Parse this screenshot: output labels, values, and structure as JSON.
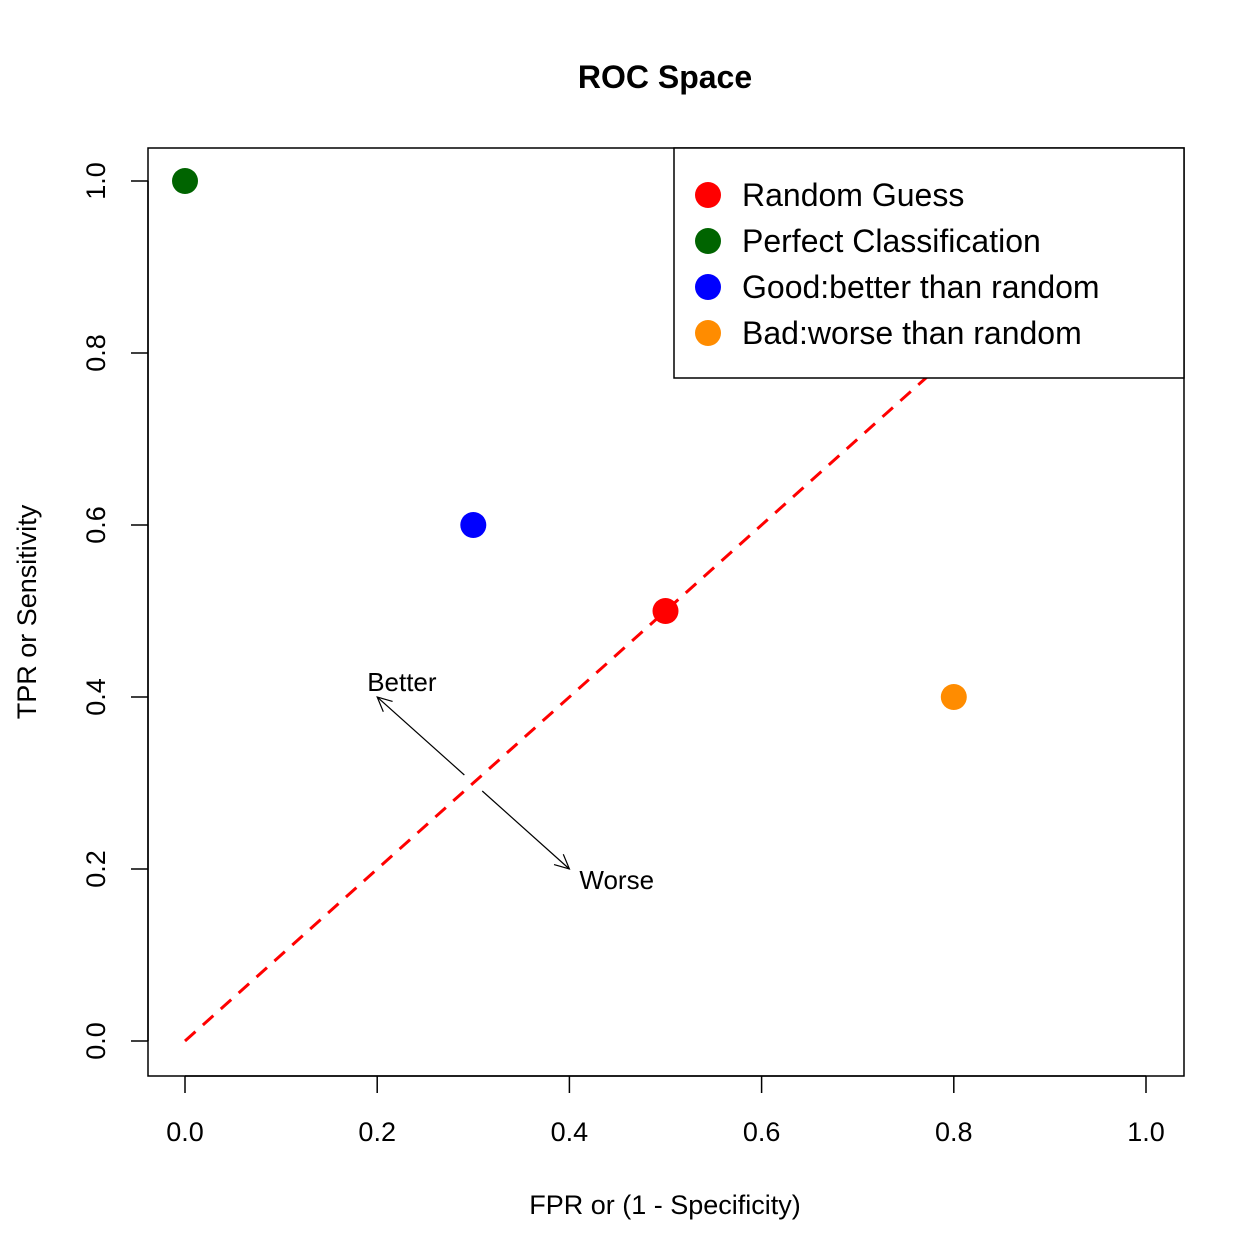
{
  "chart_data": {
    "type": "scatter",
    "title": "ROC Space",
    "xlabel": "FPR or (1 - Specificity)",
    "ylabel": "TPR or Sensitivity",
    "xlim": [
      0,
      1
    ],
    "ylim": [
      0,
      1
    ],
    "xticks": [
      "0.0",
      "0.2",
      "0.4",
      "0.6",
      "0.8",
      "1.0"
    ],
    "yticks": [
      "0.0",
      "0.2",
      "0.4",
      "0.6",
      "0.8",
      "1.0"
    ],
    "grid": false,
    "legend_position": "top-right",
    "series": [
      {
        "name": "Random Guess",
        "color": "#ff0000",
        "x": [
          0.5
        ],
        "y": [
          0.5
        ]
      },
      {
        "name": "Perfect Classification",
        "color": "#006400",
        "x": [
          0.0
        ],
        "y": [
          1.0
        ]
      },
      {
        "name": "Good:better than random",
        "color": "#0000ff",
        "x": [
          0.3
        ],
        "y": [
          0.6
        ]
      },
      {
        "name": "Bad:worse than random",
        "color": "#ff8c00",
        "x": [
          0.8
        ],
        "y": [
          0.4
        ]
      }
    ],
    "reference_line": {
      "x": [
        0,
        1
      ],
      "y": [
        0,
        1
      ],
      "color": "#ff0000",
      "style": "dashed"
    },
    "annotations": [
      {
        "text": "Better",
        "arrow_from": [
          0.3,
          0.3
        ],
        "arrow_to": [
          0.2,
          0.4
        ]
      },
      {
        "text": "Worse",
        "arrow_from": [
          0.3,
          0.3
        ],
        "arrow_to": [
          0.4,
          0.2
        ]
      }
    ]
  }
}
